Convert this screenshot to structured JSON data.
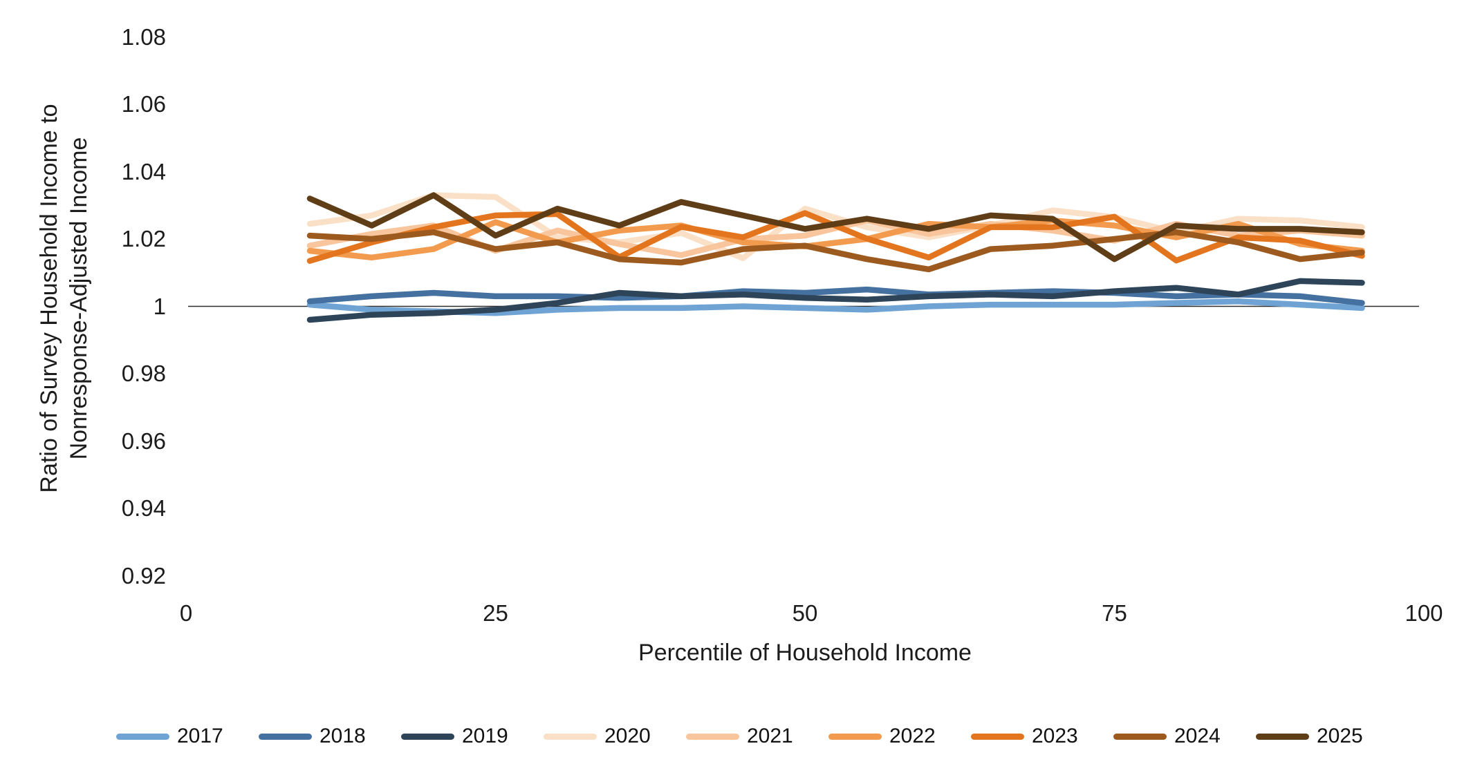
{
  "chart_data": {
    "type": "line",
    "title": "",
    "xlabel": "Percentile of Household Income",
    "ylabel_line1": "Ratio of Survey Household Income to",
    "ylabel_line2": "Nonresponse-Adjusted Income",
    "xlim": [
      0,
      100
    ],
    "ylim": [
      0.92,
      1.08
    ],
    "x_tick_labels": [
      "0",
      "25",
      "50",
      "75",
      "100"
    ],
    "x_tick_values": [
      0,
      25,
      50,
      75,
      100
    ],
    "y_tick_labels": [
      "1.08",
      "1.06",
      "1.04",
      "1.02",
      "1",
      "0.98",
      "0.96",
      "0.94",
      "0.92"
    ],
    "y_tick_values": [
      1.08,
      1.06,
      1.04,
      1.02,
      1.0,
      0.98,
      0.96,
      0.94,
      0.92
    ],
    "grid": "reference-line-only",
    "reference_line_value": 1.0,
    "reference_line_color": "#2b2b2b",
    "legend_position": "bottom",
    "x": [
      10,
      15,
      20,
      25,
      30,
      35,
      40,
      45,
      50,
      55,
      60,
      65,
      70,
      75,
      80,
      85,
      90,
      95
    ],
    "series": [
      {
        "name": "2017",
        "color": "#6fa3d3",
        "values": [
          1.0005,
          0.999,
          0.9985,
          0.998,
          0.999,
          0.9995,
          0.9995,
          1.0,
          0.9995,
          0.999,
          1.0,
          1.0005,
          1.0005,
          1.0005,
          1.001,
          1.0015,
          1.0005,
          0.9995
        ]
      },
      {
        "name": "2018",
        "color": "#44719f",
        "values": [
          1.0015,
          1.003,
          1.004,
          1.003,
          1.003,
          1.0025,
          1.003,
          1.0045,
          1.004,
          1.005,
          1.0035,
          1.004,
          1.0045,
          1.004,
          1.003,
          1.0035,
          1.003,
          1.001
        ]
      },
      {
        "name": "2019",
        "color": "#2e4459",
        "values": [
          0.996,
          0.9975,
          0.998,
          0.999,
          1.001,
          1.004,
          1.003,
          1.0035,
          1.0025,
          1.002,
          1.003,
          1.0035,
          1.003,
          1.0045,
          1.0055,
          1.0035,
          1.0075,
          1.007
        ]
      },
      {
        "name": "2020",
        "color": "#fbe0c8",
        "values": [
          1.0245,
          1.027,
          1.033,
          1.0325,
          1.0205,
          1.019,
          1.0218,
          1.0143,
          1.029,
          1.0235,
          1.0205,
          1.024,
          1.0285,
          1.0265,
          1.022,
          1.026,
          1.0255,
          1.0235
        ]
      },
      {
        "name": "2021",
        "color": "#f8c59c",
        "values": [
          1.018,
          1.0215,
          1.024,
          1.0165,
          1.0225,
          1.0185,
          1.0152,
          1.0199,
          1.021,
          1.0255,
          1.0215,
          1.0245,
          1.0225,
          1.0195,
          1.0245,
          1.021,
          1.0225,
          1.021
        ]
      },
      {
        "name": "2022",
        "color": "#f29b4e",
        "values": [
          1.0165,
          1.0145,
          1.017,
          1.025,
          1.019,
          1.0225,
          1.024,
          1.019,
          1.0178,
          1.02,
          1.0245,
          1.0235,
          1.0255,
          1.024,
          1.0205,
          1.0245,
          1.0185,
          1.0165
        ]
      },
      {
        "name": "2023",
        "color": "#e2751d",
        "values": [
          1.0135,
          1.019,
          1.0235,
          1.027,
          1.0274,
          1.0146,
          1.0236,
          1.0205,
          1.0277,
          1.0201,
          1.0145,
          1.0235,
          1.0235,
          1.0266,
          1.0136,
          1.0205,
          1.0195,
          1.015
        ]
      },
      {
        "name": "2024",
        "color": "#9c5a1e",
        "values": [
          1.021,
          1.02,
          1.022,
          1.017,
          1.019,
          1.014,
          1.013,
          1.017,
          1.018,
          1.014,
          1.011,
          1.017,
          1.018,
          1.02,
          1.022,
          1.019,
          1.014,
          1.016
        ]
      },
      {
        "name": "2025",
        "color": "#5f3d17",
        "values": [
          1.032,
          1.024,
          1.033,
          1.021,
          1.029,
          1.024,
          1.031,
          1.027,
          1.023,
          1.026,
          1.023,
          1.027,
          1.026,
          1.014,
          1.024,
          1.023,
          1.023,
          1.022
        ]
      }
    ]
  }
}
